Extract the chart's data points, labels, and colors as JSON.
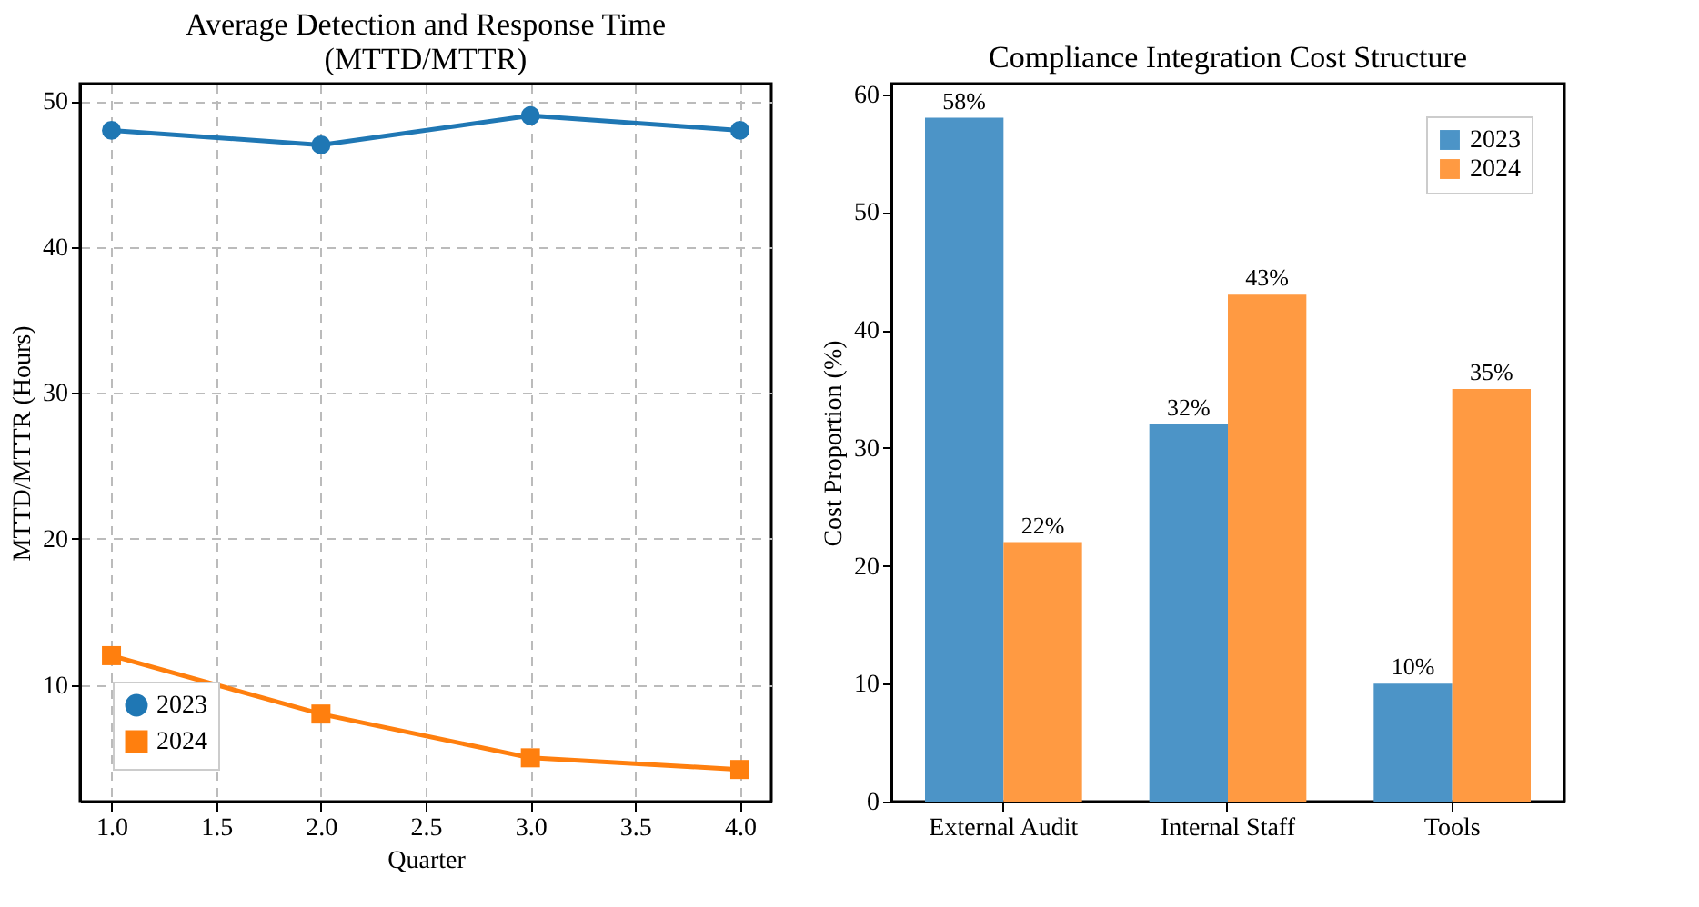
{
  "chart_data": [
    {
      "type": "line",
      "title": "Average Detection and Response Time\n(MTTD/MTTR)",
      "xlabel": "Quarter",
      "ylabel": "MTTD/MTTR (Hours)",
      "x": [
        1,
        2,
        3,
        4
      ],
      "series": [
        {
          "name": "2023",
          "color": "#1f77b4",
          "marker": "circle",
          "values": [
            48,
            47,
            49,
            48
          ]
        },
        {
          "name": "2024",
          "color": "#ff7f0e",
          "marker": "square",
          "values": [
            12,
            8,
            5,
            4.2
          ]
        }
      ],
      "xlim": [
        0.85,
        4.15
      ],
      "xticks": [
        {
          "value": 1,
          "label": "1.0"
        },
        {
          "value": 1.5,
          "label": "1.5"
        },
        {
          "value": 2,
          "label": "2.0"
        },
        {
          "value": 2.5,
          "label": "2.5"
        },
        {
          "value": 3,
          "label": "3.0"
        },
        {
          "value": 3.5,
          "label": "3.5"
        },
        {
          "value": 4,
          "label": "4.0"
        }
      ],
      "ylim": [
        2,
        51.2
      ],
      "yticks": [
        10,
        20,
        30,
        40,
        50
      ],
      "grid": true,
      "legend": "bottom left",
      "line_style": "solid"
    },
    {
      "type": "bar",
      "title": "Compliance Integration Cost Structure",
      "ylabel": "Cost Proportion (%)",
      "categories": [
        "External Audit",
        "Internal Staff",
        "Tools"
      ],
      "series": [
        {
          "name": "2023",
          "color": "#4c94c7",
          "values": [
            58,
            32,
            10
          ],
          "value_labels": [
            "58%",
            "32%",
            "10%"
          ]
        },
        {
          "name": "2024",
          "color": "#ff9a42",
          "values": [
            22,
            43,
            35
          ],
          "value_labels": [
            "22%",
            "43%",
            "35%"
          ]
        }
      ],
      "ylim": [
        0,
        60.9
      ],
      "yticks": [
        0,
        10,
        20,
        30,
        40,
        50,
        60
      ],
      "legend": "top right"
    }
  ]
}
